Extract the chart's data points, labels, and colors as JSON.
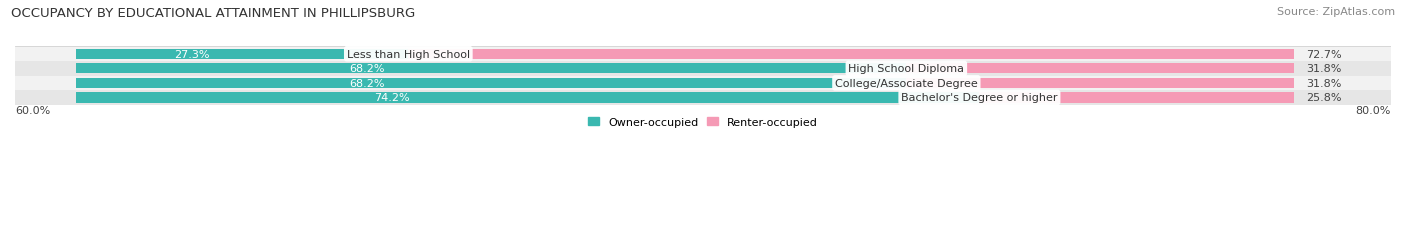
{
  "title": "OCCUPANCY BY EDUCATIONAL ATTAINMENT IN PHILLIPSBURG",
  "source": "Source: ZipAtlas.com",
  "categories": [
    "Less than High School",
    "High School Diploma",
    "College/Associate Degree",
    "Bachelor's Degree or higher"
  ],
  "owner_pct": [
    27.3,
    68.2,
    68.2,
    74.2
  ],
  "renter_pct": [
    72.7,
    31.8,
    31.8,
    25.8
  ],
  "owner_color": "#3ab8b0",
  "renter_color": "#f59ab5",
  "row_bg_even": "#f2f2f2",
  "row_bg_odd": "#e6e6e6",
  "title_fontsize": 9.5,
  "source_fontsize": 8,
  "label_fontsize": 8,
  "category_fontsize": 8,
  "legend_fontsize": 8,
  "bar_height": 0.7,
  "xlim": [
    0,
    100
  ],
  "left_tick_label": "60.0%",
  "right_tick_label": "80.0%"
}
